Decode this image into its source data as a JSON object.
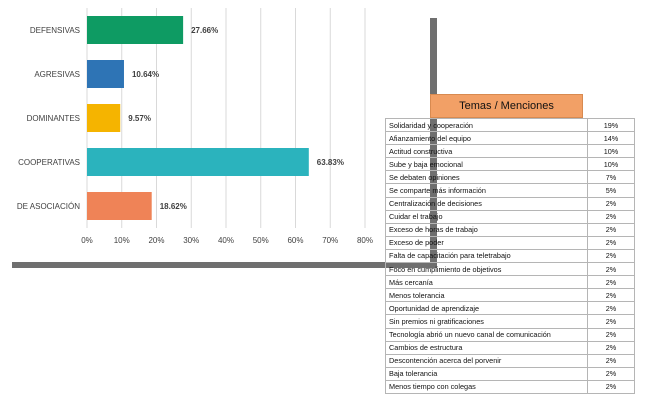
{
  "chart_data": {
    "type": "bar",
    "orientation": "horizontal",
    "categories": [
      "DEFENSIVAS",
      "AGRESIVAS",
      "DOMINANTES",
      "COOPERATIVAS",
      "DE ASOCIACIÓN"
    ],
    "values": [
      27.66,
      10.64,
      9.57,
      63.83,
      18.62
    ],
    "value_labels": [
      "27.66%",
      "10.64%",
      "9.57%",
      "63.83%",
      "18.62%"
    ],
    "colors": [
      "#0e9b63",
      "#2e74b5",
      "#f5b400",
      "#2bb3bd",
      "#ef8357"
    ],
    "xticks": [
      "0%",
      "10%",
      "20%",
      "30%",
      "40%",
      "50%",
      "60%",
      "70%",
      "80%"
    ],
    "xlim": [
      0,
      80
    ],
    "grid": true
  },
  "table": {
    "header": "Temas / Menciones",
    "rows": [
      {
        "topic": "Solidaridad y cooperación",
        "pct": "19%"
      },
      {
        "topic": "Afianzamiento del equipo",
        "pct": "14%"
      },
      {
        "topic": "Actitud constructiva",
        "pct": "10%"
      },
      {
        "topic": "Sube y baja emocional",
        "pct": "10%"
      },
      {
        "topic": "Se debaten opiniones",
        "pct": "7%"
      },
      {
        "topic": "Se comparte más información",
        "pct": "5%"
      },
      {
        "topic": "Centralización de decisiones",
        "pct": "2%"
      },
      {
        "topic": "Cuidar el trabajo",
        "pct": "2%"
      },
      {
        "topic": "Exceso de horas de trabajo",
        "pct": "2%"
      },
      {
        "topic": "Exceso de poder",
        "pct": "2%"
      },
      {
        "topic": "Falta de capacitación para teletrabajo",
        "pct": "2%"
      },
      {
        "topic": "Foco en cumplimiento de objetivos",
        "pct": "2%"
      },
      {
        "topic": "Más cercanía",
        "pct": "2%"
      },
      {
        "topic": "Menos tolerancia",
        "pct": "2%"
      },
      {
        "topic": "Oportunidad de aprendizaje",
        "pct": "2%"
      },
      {
        "topic": "Sin premios ni gratificaciones",
        "pct": "2%"
      },
      {
        "topic": "Tecnología abrió un nuevo canal de comunicación",
        "pct": "2%"
      },
      {
        "topic": "Cambios de estructura",
        "pct": "2%"
      },
      {
        "topic": "Descontención acerca del porvenir",
        "pct": "2%"
      },
      {
        "topic": "Baja tolerancia",
        "pct": "2%"
      },
      {
        "topic": "Menos tiempo con colegas",
        "pct": "2%"
      }
    ]
  }
}
